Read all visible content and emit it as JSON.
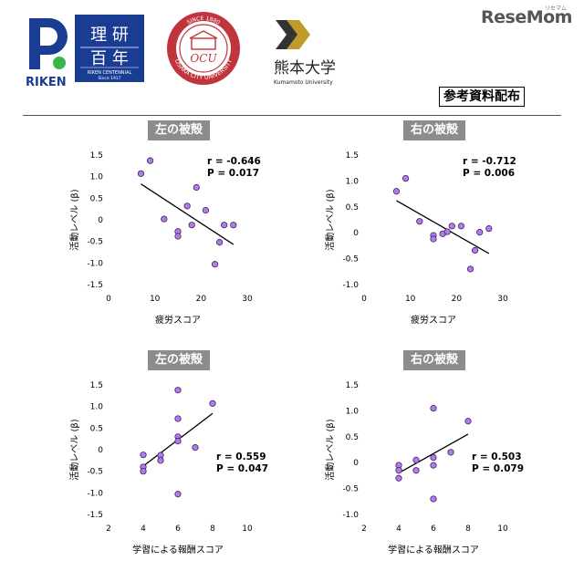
{
  "header": {
    "riken_text": "RIKEN",
    "riken_centennial_title_1": "理 研",
    "riken_centennial_title_2": "百 年",
    "riken_centennial_sub": "RIKEN CENTENNIAL",
    "riken_centennial_since": "Since 1917",
    "osaka_since": "SINCE 1880",
    "osaka_name": "OSAKA CITY UNIVERSITY",
    "osaka_ocu": "OCU",
    "kumamoto_name": "熊本大学",
    "kumamoto_sub": "Kumamoto University",
    "resemom": "ReseMom",
    "resemom_ruby": "リセマム",
    "handout_label": "参考資料配布"
  },
  "colors": {
    "point_fill": "#b07fe6",
    "point_stroke": "#3c1f66",
    "title_bg": "#8c8c8c",
    "riken_blue": "#1a3d93",
    "riken_green": "#3bb54a",
    "osaka_red": "#c0343c",
    "kumamoto_gold": "#c19a2c"
  },
  "chart_data": [
    {
      "type": "scatter",
      "title": "左の被殻",
      "xlabel": "疲労スコア",
      "ylabel": "活動レベル (β)",
      "xlim": [
        0,
        30
      ],
      "ylim": [
        -1.5,
        1.5
      ],
      "xticks": [
        "0",
        "10",
        "20",
        "30"
      ],
      "yticks": [
        "1.5",
        "1.0",
        "0.5",
        "0",
        "-0.5",
        "-1.0",
        "-1.5"
      ],
      "stat_r": "r = -0.646",
      "stat_p": "P = 0.017",
      "fit": [
        [
          7,
          0.83
        ],
        [
          27,
          -0.57
        ]
      ],
      "points": [
        [
          7,
          1.07
        ],
        [
          9,
          1.37
        ],
        [
          12,
          0.02
        ],
        [
          15,
          -0.27
        ],
        [
          15,
          -0.38
        ],
        [
          17,
          0.32
        ],
        [
          18,
          -0.12
        ],
        [
          19,
          0.75
        ],
        [
          21,
          0.22
        ],
        [
          23,
          -1.03
        ],
        [
          24,
          -0.52
        ],
        [
          25,
          -0.12
        ],
        [
          27,
          -0.12
        ]
      ]
    },
    {
      "type": "scatter",
      "title": "右の被殻",
      "xlabel": "疲労スコア",
      "ylabel": "活動レベル (β)",
      "xlim": [
        0,
        30
      ],
      "ylim": [
        -1.0,
        1.5
      ],
      "xticks": [
        "0",
        "10",
        "20",
        "30"
      ],
      "yticks": [
        "1.5",
        "1.0",
        "0.5",
        "0",
        "-0.5",
        "-1.0"
      ],
      "stat_r": "r = -0.712",
      "stat_p": "P = 0.006",
      "fit": [
        [
          7,
          0.62
        ],
        [
          27,
          -0.4
        ]
      ],
      "points": [
        [
          7,
          0.8
        ],
        [
          9,
          1.05
        ],
        [
          12,
          0.22
        ],
        [
          15,
          -0.05
        ],
        [
          15,
          -0.12
        ],
        [
          17,
          -0.02
        ],
        [
          18,
          0.02
        ],
        [
          19,
          0.13
        ],
        [
          21,
          0.13
        ],
        [
          23,
          -0.7
        ],
        [
          24,
          -0.34
        ],
        [
          25,
          0.01
        ],
        [
          27,
          0.08
        ]
      ]
    },
    {
      "type": "scatter",
      "title": "左の被殻",
      "xlabel": "学習による報酬スコア",
      "ylabel": "活動レベル (β)",
      "xlim": [
        2,
        10
      ],
      "ylim": [
        -1.5,
        1.5
      ],
      "xticks": [
        "2",
        "4",
        "6",
        "8",
        "10"
      ],
      "yticks": [
        "1.5",
        "1.0",
        "0.5",
        "0",
        "-0.5",
        "-1.0",
        "-1.5"
      ],
      "stat_r": "r = 0.559",
      "stat_p": "P = 0.047",
      "fit": [
        [
          4,
          -0.38
        ],
        [
          8,
          0.84
        ]
      ],
      "points": [
        [
          4,
          -0.12
        ],
        [
          4,
          -0.4
        ],
        [
          4,
          -0.5
        ],
        [
          5,
          -0.13
        ],
        [
          5,
          -0.25
        ],
        [
          6,
          0.3
        ],
        [
          6,
          0.2
        ],
        [
          6,
          0.72
        ],
        [
          6,
          1.38
        ],
        [
          6,
          -1.03
        ],
        [
          7,
          0.05
        ],
        [
          8,
          1.07
        ]
      ]
    },
    {
      "type": "scatter",
      "title": "右の被殻",
      "xlabel": "学習による報酬スコア",
      "ylabel": "活動レベル (β)",
      "xlim": [
        2,
        10
      ],
      "ylim": [
        -1.0,
        1.5
      ],
      "xticks": [
        "2",
        "4",
        "6",
        "8",
        "10"
      ],
      "yticks": [
        "1.5",
        "1.0",
        "0.5",
        "0",
        "-0.5",
        "-1.0"
      ],
      "stat_r": "r = 0.503",
      "stat_p": "P = 0.079",
      "fit": [
        [
          4,
          -0.2
        ],
        [
          8,
          0.55
        ]
      ],
      "points": [
        [
          4,
          -0.3
        ],
        [
          4,
          -0.05
        ],
        [
          4,
          -0.15
        ],
        [
          5,
          0.05
        ],
        [
          5,
          -0.15
        ],
        [
          6,
          -0.05
        ],
        [
          6,
          0.1
        ],
        [
          6,
          -0.7
        ],
        [
          6,
          1.05
        ],
        [
          7,
          0.2
        ],
        [
          8,
          0.8
        ]
      ]
    }
  ]
}
